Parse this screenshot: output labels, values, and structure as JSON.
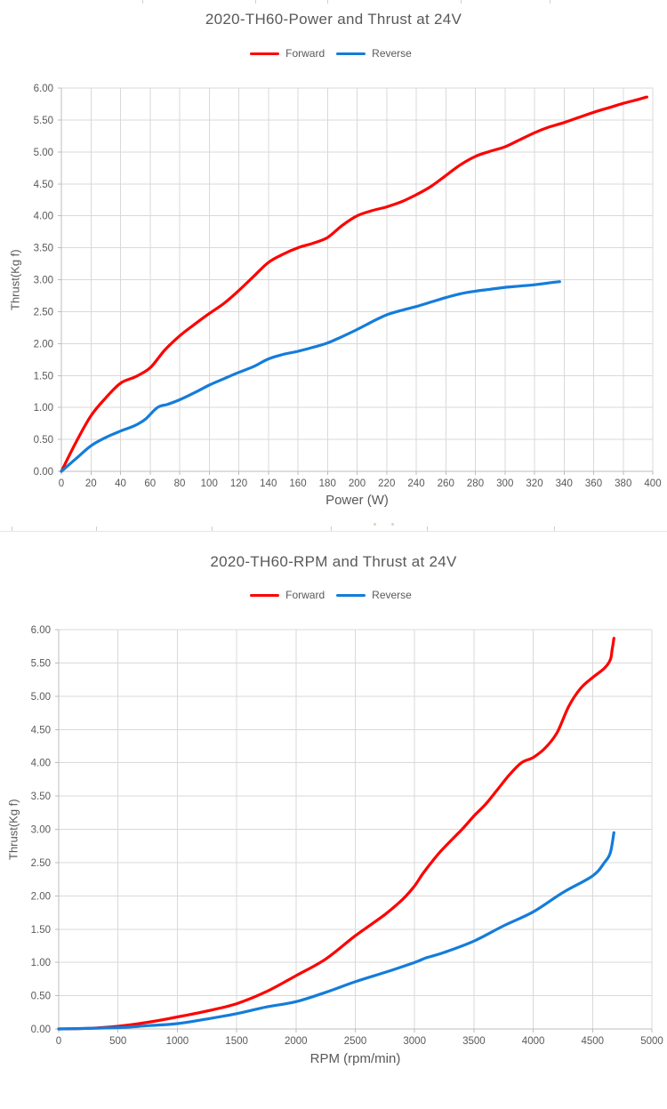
{
  "colors": {
    "text": "#595959",
    "gridline": "#D9D9D9",
    "axis": "#BDBDBD",
    "forward": "#FE0000",
    "reverse": "#147CDB"
  },
  "chart_data": [
    {
      "type": "line",
      "title": "2020-TH60-Power and Thrust at 24V",
      "xlabel": "Power (W)",
      "ylabel": "Thrust(Kg f)",
      "xlim": [
        0,
        400
      ],
      "xtick_step": 20,
      "ylim": [
        0,
        6
      ],
      "ytick_step": 0.5,
      "ytick_decimals": 2,
      "grid": true,
      "legend_position": "top-center",
      "series": [
        {
          "name": "Forward",
          "color": "#FE0000",
          "points": [
            [
              0,
              0
            ],
            [
              10,
              0.46
            ],
            [
              20,
              0.87
            ],
            [
              30,
              1.15
            ],
            [
              40,
              1.38
            ],
            [
              50,
              1.48
            ],
            [
              60,
              1.62
            ],
            [
              70,
              1.9
            ],
            [
              80,
              2.12
            ],
            [
              90,
              2.3
            ],
            [
              100,
              2.47
            ],
            [
              110,
              2.63
            ],
            [
              120,
              2.83
            ],
            [
              130,
              3.05
            ],
            [
              140,
              3.27
            ],
            [
              150,
              3.4
            ],
            [
              160,
              3.5
            ],
            [
              170,
              3.57
            ],
            [
              180,
              3.66
            ],
            [
              190,
              3.85
            ],
            [
              200,
              4.0
            ],
            [
              210,
              4.08
            ],
            [
              220,
              4.14
            ],
            [
              230,
              4.22
            ],
            [
              240,
              4.33
            ],
            [
              250,
              4.46
            ],
            [
              260,
              4.63
            ],
            [
              270,
              4.8
            ],
            [
              280,
              4.93
            ],
            [
              290,
              5.01
            ],
            [
              300,
              5.08
            ],
            [
              310,
              5.19
            ],
            [
              320,
              5.3
            ],
            [
              330,
              5.39
            ],
            [
              340,
              5.46
            ],
            [
              350,
              5.54
            ],
            [
              360,
              5.62
            ],
            [
              370,
              5.69
            ],
            [
              380,
              5.76
            ],
            [
              390,
              5.82
            ],
            [
              396,
              5.86
            ]
          ]
        },
        {
          "name": "Reverse",
          "color": "#147CDB",
          "points": [
            [
              0,
              0
            ],
            [
              10,
              0.2
            ],
            [
              20,
              0.4
            ],
            [
              30,
              0.53
            ],
            [
              40,
              0.63
            ],
            [
              50,
              0.72
            ],
            [
              57,
              0.82
            ],
            [
              65,
              1.0
            ],
            [
              72,
              1.05
            ],
            [
              80,
              1.12
            ],
            [
              90,
              1.23
            ],
            [
              100,
              1.35
            ],
            [
              110,
              1.45
            ],
            [
              120,
              1.55
            ],
            [
              130,
              1.64
            ],
            [
              140,
              1.76
            ],
            [
              150,
              1.83
            ],
            [
              160,
              1.88
            ],
            [
              170,
              1.94
            ],
            [
              180,
              2.01
            ],
            [
              190,
              2.11
            ],
            [
              200,
              2.22
            ],
            [
              210,
              2.34
            ],
            [
              220,
              2.45
            ],
            [
              230,
              2.52
            ],
            [
              240,
              2.58
            ],
            [
              250,
              2.65
            ],
            [
              260,
              2.72
            ],
            [
              270,
              2.78
            ],
            [
              280,
              2.82
            ],
            [
              290,
              2.85
            ],
            [
              300,
              2.88
            ],
            [
              310,
              2.9
            ],
            [
              320,
              2.92
            ],
            [
              330,
              2.95
            ],
            [
              337,
              2.97
            ]
          ]
        }
      ]
    },
    {
      "type": "line",
      "title": "2020-TH60-RPM and Thrust at 24V",
      "xlabel": "RPM (rpm/min)",
      "ylabel": "Thrust(Kg f)",
      "xlim": [
        0,
        5000
      ],
      "xtick_step": 500,
      "ylim": [
        0,
        6
      ],
      "ytick_step": 0.5,
      "ytick_decimals": 2,
      "grid": true,
      "legend_position": "top-center",
      "series": [
        {
          "name": "Forward",
          "color": "#FE0000",
          "points": [
            [
              0,
              0
            ],
            [
              250,
              0.01
            ],
            [
              500,
              0.04
            ],
            [
              750,
              0.1
            ],
            [
              1000,
              0.18
            ],
            [
              1250,
              0.27
            ],
            [
              1500,
              0.38
            ],
            [
              1750,
              0.56
            ],
            [
              2000,
              0.8
            ],
            [
              2250,
              1.05
            ],
            [
              2500,
              1.4
            ],
            [
              2750,
              1.72
            ],
            [
              2900,
              1.95
            ],
            [
              3000,
              2.15
            ],
            [
              3080,
              2.36
            ],
            [
              3220,
              2.67
            ],
            [
              3400,
              3.0
            ],
            [
              3500,
              3.2
            ],
            [
              3600,
              3.38
            ],
            [
              3700,
              3.6
            ],
            [
              3800,
              3.82
            ],
            [
              3900,
              4.0
            ],
            [
              4000,
              4.08
            ],
            [
              4100,
              4.22
            ],
            [
              4200,
              4.45
            ],
            [
              4300,
              4.85
            ],
            [
              4400,
              5.12
            ],
            [
              4500,
              5.28
            ],
            [
              4600,
              5.42
            ],
            [
              4650,
              5.55
            ],
            [
              4665,
              5.7
            ],
            [
              4680,
              5.87
            ]
          ]
        },
        {
          "name": "Reverse",
          "color": "#147CDB",
          "points": [
            [
              0,
              0
            ],
            [
              500,
              0.02
            ],
            [
              750,
              0.05
            ],
            [
              1000,
              0.08
            ],
            [
              1250,
              0.15
            ],
            [
              1500,
              0.23
            ],
            [
              1750,
              0.33
            ],
            [
              2000,
              0.41
            ],
            [
              2250,
              0.55
            ],
            [
              2500,
              0.71
            ],
            [
              2750,
              0.85
            ],
            [
              3000,
              1.0
            ],
            [
              3100,
              1.07
            ],
            [
              3250,
              1.15
            ],
            [
              3500,
              1.32
            ],
            [
              3750,
              1.55
            ],
            [
              4000,
              1.76
            ],
            [
              4250,
              2.05
            ],
            [
              4500,
              2.3
            ],
            [
              4600,
              2.5
            ],
            [
              4650,
              2.65
            ],
            [
              4680,
              2.95
            ]
          ]
        }
      ]
    }
  ]
}
